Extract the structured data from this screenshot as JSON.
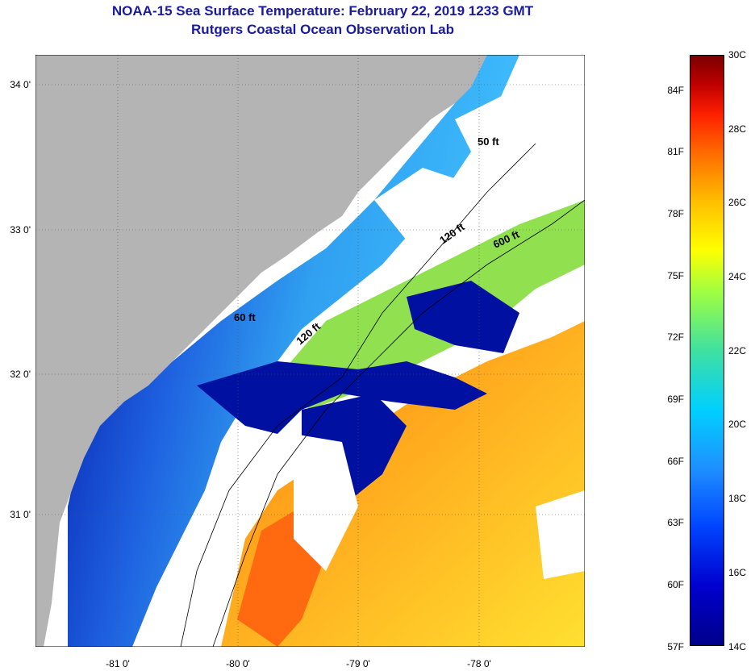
{
  "header": {
    "title_line1": "NOAA-15 Sea Surface Temperature:  February 22, 2019 1233 GMT",
    "title_line2": "Rutgers Coastal Ocean Observation Lab"
  },
  "map": {
    "lat_labels": [
      "34 0'",
      "33 0'",
      "32 0'",
      "31 0'"
    ],
    "lon_labels": [
      "-81 0'",
      "-80 0'",
      "-79 0'",
      "-78 0'"
    ],
    "isobath_labels": [
      "50 ft",
      "60 ft",
      "120 ft",
      "120 ft",
      "600 ft"
    ],
    "colors": {
      "land": "#b4b4b4",
      "cloud": "#ffffff",
      "cold": "#0010a0",
      "warm": "#ff9a10"
    }
  },
  "colorbar": {
    "fahrenheit_labels": [
      "84F",
      "81F",
      "78F",
      "75F",
      "72F",
      "69F",
      "66F",
      "63F",
      "60F",
      "57F"
    ],
    "celsius_labels": [
      "30C",
      "28C",
      "26C",
      "24C",
      "22C",
      "20C",
      "18C",
      "16C",
      "14C"
    ],
    "range_c": [
      14,
      30
    ],
    "range_f": [
      57,
      86
    ]
  }
}
